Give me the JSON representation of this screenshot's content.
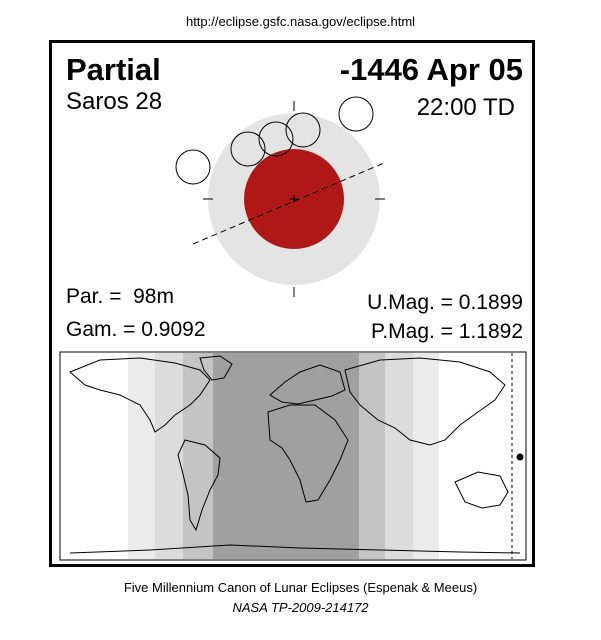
{
  "header": {
    "url": "http://eclipse.gsfc.nasa.gov/eclipse.html"
  },
  "eclipse": {
    "type": "Partial",
    "date": "-1446 Apr 05",
    "saros": "Saros  28",
    "time": "22:00 TD",
    "par": "Par. =  98m",
    "gam": "Gam. = 0.9092",
    "umag": "U.Mag. = 0.1899",
    "pmag": "P.Mag. = 1.1892"
  },
  "colors": {
    "umbra": "#b01818",
    "penumbra": "#e4e4e4",
    "night_dark": "#a0a0a0",
    "night_mid": "#c4c4c4",
    "night_light": "#dcdcdc"
  },
  "footer": {
    "line1": "Five Millennium Canon of Lunar Eclipses (Espenak & Meeus)",
    "line2": "NASA TP-2009-214172"
  }
}
